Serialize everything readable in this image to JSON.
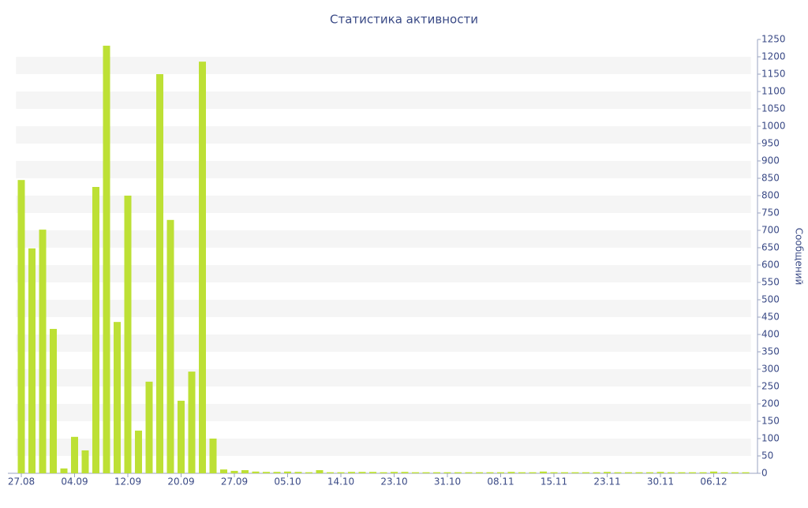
{
  "chart_data": {
    "type": "bar",
    "title": "Статистика активности",
    "y_axis_label": "Сообщений",
    "categories": [
      "27.08",
      null,
      null,
      null,
      null,
      "04.09",
      null,
      null,
      null,
      null,
      "12.09",
      null,
      null,
      null,
      null,
      "20.09",
      null,
      null,
      null,
      null,
      "27.09",
      null,
      null,
      null,
      null,
      "05.10",
      null,
      null,
      null,
      null,
      "14.10",
      null,
      null,
      null,
      null,
      "23.10",
      null,
      null,
      null,
      null,
      "31.10",
      null,
      null,
      null,
      null,
      "08.11",
      null,
      null,
      null,
      null,
      "15.11",
      null,
      null,
      null,
      null,
      "23.11",
      null,
      null,
      null,
      null,
      "30.11",
      null,
      null,
      null,
      null,
      "06.12",
      null,
      null,
      null
    ],
    "values": [
      845,
      648,
      702,
      416,
      14,
      105,
      66,
      825,
      1232,
      436,
      800,
      123,
      264,
      1150,
      730,
      209,
      293,
      1186,
      100,
      11,
      7,
      9,
      5,
      4,
      4,
      5,
      4,
      3,
      9,
      3,
      3,
      4,
      4,
      4,
      3,
      4,
      4,
      3,
      3,
      3,
      3,
      3,
      3,
      3,
      3,
      3,
      4,
      3,
      3,
      5,
      3,
      3,
      3,
      3,
      3,
      4,
      3,
      3,
      3,
      3,
      4,
      3,
      3,
      3,
      3,
      5,
      3,
      3,
      3
    ],
    "color": "#bde035",
    "ylim": [
      0,
      1250
    ],
    "yticks": [
      0,
      50,
      100,
      150,
      200,
      250,
      300,
      350,
      400,
      450,
      500,
      550,
      600,
      650,
      700,
      750,
      800,
      850,
      900,
      950,
      1000,
      1050,
      1100,
      1150,
      1200,
      1250
    ],
    "grid": true
  }
}
